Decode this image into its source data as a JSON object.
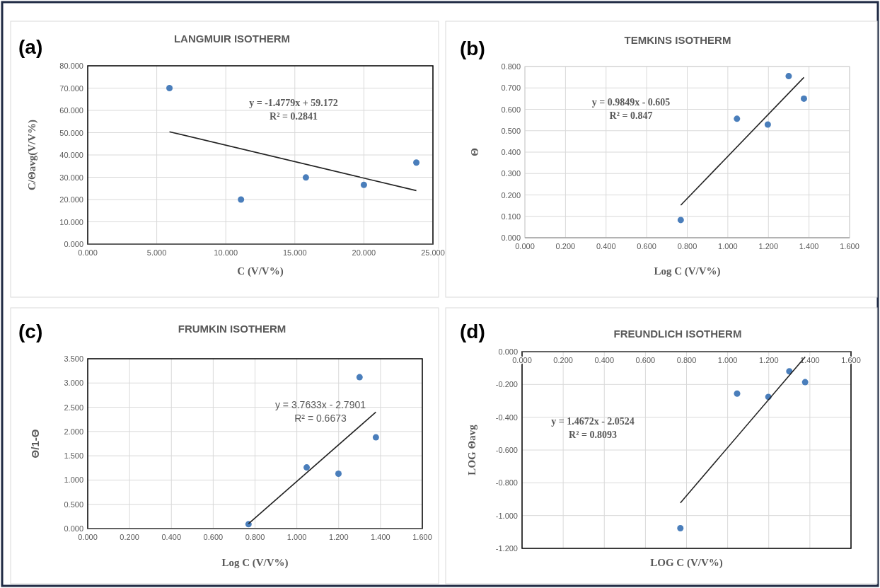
{
  "chart_data": [
    {
      "type": "scatter",
      "title": "LANGMUIR ISOTHERM",
      "xlabel": "C (V/V%)",
      "ylabel": "C/Θavg(V/V%)",
      "annotations": [
        "(a)",
        "y = -1.4779x + 59.172",
        "R² = 0.2841"
      ],
      "xlim": [
        0,
        25
      ],
      "xticks": [
        {
          "value": 0,
          "label": "0.000"
        },
        {
          "value": 5,
          "label": "5.000"
        },
        {
          "value": 10,
          "label": "10.000"
        },
        {
          "value": 15,
          "label": "15.000"
        },
        {
          "value": 20,
          "label": "20.000"
        },
        {
          "value": 25,
          "label": "25.000"
        }
      ],
      "ylim": [
        0,
        80
      ],
      "yticks": [
        {
          "value": 0,
          "label": "0.000"
        },
        {
          "value": 10,
          "label": "10.000"
        },
        {
          "value": 20,
          "label": "20.000"
        },
        {
          "value": 30,
          "label": "30.000"
        },
        {
          "value": 40,
          "label": "40.000"
        },
        {
          "value": 50,
          "label": "50.000"
        },
        {
          "value": 60,
          "label": "60.000"
        },
        {
          "value": 70,
          "label": "70.000"
        },
        {
          "value": 80,
          "label": "80.000"
        }
      ],
      "grid": true,
      "marker": "circle",
      "series": [
        {
          "color": "#4a7ebb",
          "x": [
            5.92,
            11.1,
            15.8,
            20.0,
            23.8
          ],
          "values": [
            70.0,
            20.0,
            29.9,
            26.6,
            36.6
          ]
        },
        {
          "type": "line",
          "color": "#222222",
          "line_style": "solid",
          "marker": "none",
          "x": [
            5.92,
            23.8
          ],
          "values": [
            50.4,
            24.0
          ]
        }
      ]
    },
    {
      "type": "scatter",
      "title": "TEMKINS ISOTHERM",
      "xlabel": "Log C (V/V%)",
      "ylabel": "Θ",
      "annotations": [
        "(b)",
        "y = 0.9849x - 0.605",
        "R² = 0.847"
      ],
      "xlim": [
        0,
        1.6
      ],
      "xticks": [
        {
          "value": 0,
          "label": "0.000"
        },
        {
          "value": 0.2,
          "label": "0.200"
        },
        {
          "value": 0.4,
          "label": "0.400"
        },
        {
          "value": 0.6,
          "label": "0.600"
        },
        {
          "value": 0.8,
          "label": "0.800"
        },
        {
          "value": 1,
          "label": "1.000"
        },
        {
          "value": 1.2,
          "label": "1.200"
        },
        {
          "value": 1.4,
          "label": "1.400"
        },
        {
          "value": 1.6,
          "label": "1.600"
        }
      ],
      "ylim": [
        0,
        0.8
      ],
      "yticks": [
        {
          "value": 0,
          "label": "0.000"
        },
        {
          "value": 0.1,
          "label": "0.100"
        },
        {
          "value": 0.2,
          "label": "0.200"
        },
        {
          "value": 0.3,
          "label": "0.300"
        },
        {
          "value": 0.4,
          "label": "0.400"
        },
        {
          "value": 0.5,
          "label": "0.500"
        },
        {
          "value": 0.6,
          "label": "0.600"
        },
        {
          "value": 0.7,
          "label": "0.700"
        },
        {
          "value": 0.8,
          "label": "0.800"
        }
      ],
      "grid": true,
      "marker": "circle",
      "series": [
        {
          "color": "#4a7ebb",
          "x": [
            0.768,
            1.045,
            1.197,
            1.3,
            1.375
          ],
          "values": [
            0.083,
            0.556,
            0.529,
            0.755,
            0.65
          ]
        },
        {
          "type": "line",
          "color": "#222222",
          "line_style": "solid",
          "marker": "none",
          "x": [
            0.768,
            1.375
          ],
          "values": [
            0.152,
            0.749
          ]
        }
      ]
    },
    {
      "type": "scatter",
      "title": "FRUMKIN ISOTHERM",
      "xlabel": "Log C (V/V%)",
      "ylabel": "Θ/1-Θ",
      "annotations": [
        "(c)",
        "y = 3.7633x - 2.7901",
        "R² = 0.6673"
      ],
      "xlim": [
        0,
        1.6
      ],
      "xticks": [
        {
          "value": 0,
          "label": "0.000"
        },
        {
          "value": 0.2,
          "label": "0.200"
        },
        {
          "value": 0.4,
          "label": "0.400"
        },
        {
          "value": 0.6,
          "label": "0.600"
        },
        {
          "value": 0.8,
          "label": "0.800"
        },
        {
          "value": 1,
          "label": "1.000"
        },
        {
          "value": 1.2,
          "label": "1.200"
        },
        {
          "value": 1.4,
          "label": "1.400"
        },
        {
          "value": 1.6,
          "label": "1.600"
        }
      ],
      "ylim": [
        0,
        3.5
      ],
      "yticks": [
        {
          "value": 0,
          "label": "0.000"
        },
        {
          "value": 0.5,
          "label": "0.500"
        },
        {
          "value": 1,
          "label": "1.000"
        },
        {
          "value": 1.5,
          "label": "1.500"
        },
        {
          "value": 2,
          "label": "2.000"
        },
        {
          "value": 2.5,
          "label": "2.500"
        },
        {
          "value": 3,
          "label": "3.000"
        },
        {
          "value": 3.5,
          "label": "3.500"
        }
      ],
      "grid": true,
      "marker": "circle",
      "series": [
        {
          "color": "#4a7ebb",
          "x": [
            0.769,
            1.047,
            1.199,
            1.3,
            1.378
          ],
          "values": [
            0.09,
            1.26,
            1.13,
            3.12,
            1.88
          ]
        },
        {
          "type": "line",
          "color": "#222222",
          "line_style": "solid",
          "marker": "none",
          "x": [
            0.769,
            1.378
          ],
          "values": [
            0.1,
            2.4
          ]
        }
      ]
    },
    {
      "type": "scatter",
      "title": "FREUNDLICH ISOTHERM",
      "xlabel": "LOG C (V/V%)",
      "ylabel": "LOG Θavg",
      "annotations": [
        "(d)",
        "y = 1.4672x - 2.0524",
        "R² = 0.8093"
      ],
      "xlim": [
        0,
        1.6
      ],
      "xticks": [
        {
          "value": 0,
          "label": "0.000"
        },
        {
          "value": 0.2,
          "label": "0.200"
        },
        {
          "value": 0.4,
          "label": "0.400"
        },
        {
          "value": 0.6,
          "label": "0.600"
        },
        {
          "value": 0.8,
          "label": "0.800"
        },
        {
          "value": 1,
          "label": "1.000"
        },
        {
          "value": 1.2,
          "label": "1.200"
        },
        {
          "value": 1.4,
          "label": "1.400"
        },
        {
          "value": 1.6,
          "label": "1.600"
        }
      ],
      "ylim": [
        -1.2,
        0
      ],
      "yticks": [
        {
          "value": -1.2,
          "label": "-1.200"
        },
        {
          "value": -1,
          "label": "-1.000"
        },
        {
          "value": -0.8,
          "label": "-0.800"
        },
        {
          "value": -0.6,
          "label": "-0.600"
        },
        {
          "value": -0.4,
          "label": "-0.400"
        },
        {
          "value": -0.2,
          "label": "-0.200"
        },
        {
          "value": 0,
          "label": "0.000"
        }
      ],
      "grid": true,
      "marker": "circle",
      "series": [
        {
          "color": "#4a7ebb",
          "x": [
            0.77,
            1.046,
            1.198,
            1.3,
            1.377
          ],
          "values": [
            -1.077,
            -0.256,
            -0.276,
            -0.12,
            -0.186
          ]
        },
        {
          "type": "line",
          "color": "#222222",
          "line_style": "solid",
          "marker": "none",
          "x": [
            0.77,
            1.377
          ],
          "values": [
            -0.923,
            -0.032
          ]
        }
      ]
    }
  ]
}
